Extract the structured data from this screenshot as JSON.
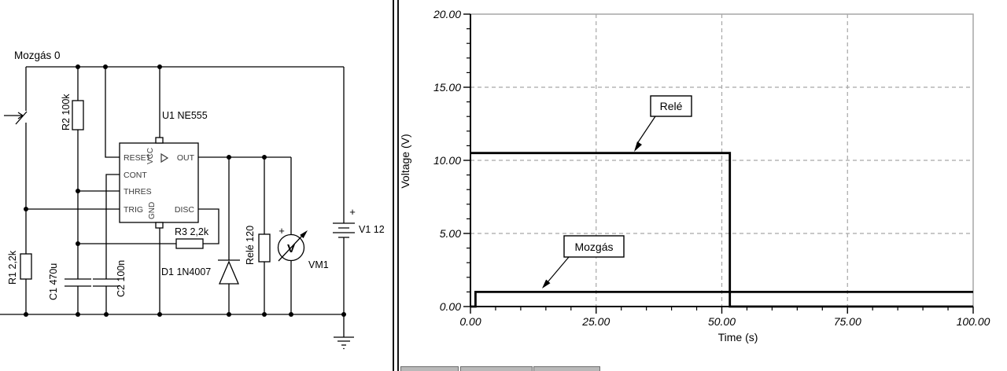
{
  "colors": {
    "background": "#ffffff",
    "wire": "#000000",
    "pin_text": "#3a3a3a",
    "grid": "#a6a6a6",
    "trace": "#000000",
    "divider": "#141414"
  },
  "circuit": {
    "switch": {
      "label": "Mozgás 0",
      "state": "0"
    },
    "components": {
      "r1": {
        "label": "R1 2,2k"
      },
      "r2": {
        "label": "R2 100k"
      },
      "r3": {
        "label": "R3 2,2k"
      },
      "c1": {
        "label": "C1 470u"
      },
      "c2": {
        "label": "C2 100n"
      },
      "d1": {
        "label": "D1 1N4007"
      },
      "relay": {
        "label": "Relé 120"
      },
      "ic": {
        "label": "U1 NE555"
      },
      "battery": {
        "label": "V1 12",
        "plus": "+"
      },
      "voltmeter": {
        "label": "VM1",
        "plus": "+",
        "symbol": "V"
      }
    },
    "ic_pins": {
      "reset": "RESET",
      "cont": "CONT",
      "thres": "THRES",
      "trig": "TRIG",
      "out": "OUT",
      "disc": "DISC",
      "vcc": "VCC",
      "gnd": "GND"
    }
  },
  "chart_data": {
    "type": "line",
    "title": "",
    "xlabel": "Time (s)",
    "ylabel": "Voltage (V)",
    "xlim": [
      0,
      100
    ],
    "ylim": [
      0,
      20
    ],
    "x_ticks": [
      0,
      25,
      50,
      75,
      100
    ],
    "x_tick_labels": [
      "0.00",
      "25.00",
      "50.00",
      "75.00",
      "100.00"
    ],
    "y_ticks": [
      0,
      5,
      10,
      15,
      20
    ],
    "y_tick_labels": [
      "0.00",
      "5.00",
      "10.00",
      "15.00",
      "20.00"
    ],
    "x_minor_step": 5,
    "y_minor_step": 1,
    "grid": "dashed-major",
    "legend_position": "none",
    "series": [
      {
        "name": "Relé",
        "points": [
          [
            0,
            10.5
          ],
          [
            51.6,
            10.5
          ],
          [
            51.6,
            0
          ],
          [
            100,
            0
          ]
        ]
      },
      {
        "name": "Mozgás",
        "points": [
          [
            0,
            0
          ],
          [
            1,
            0
          ],
          [
            1,
            1.0
          ],
          [
            100,
            1.0
          ]
        ]
      }
    ],
    "annotations": [
      {
        "text": "Relé"
      },
      {
        "text": "Mozgás"
      }
    ]
  }
}
